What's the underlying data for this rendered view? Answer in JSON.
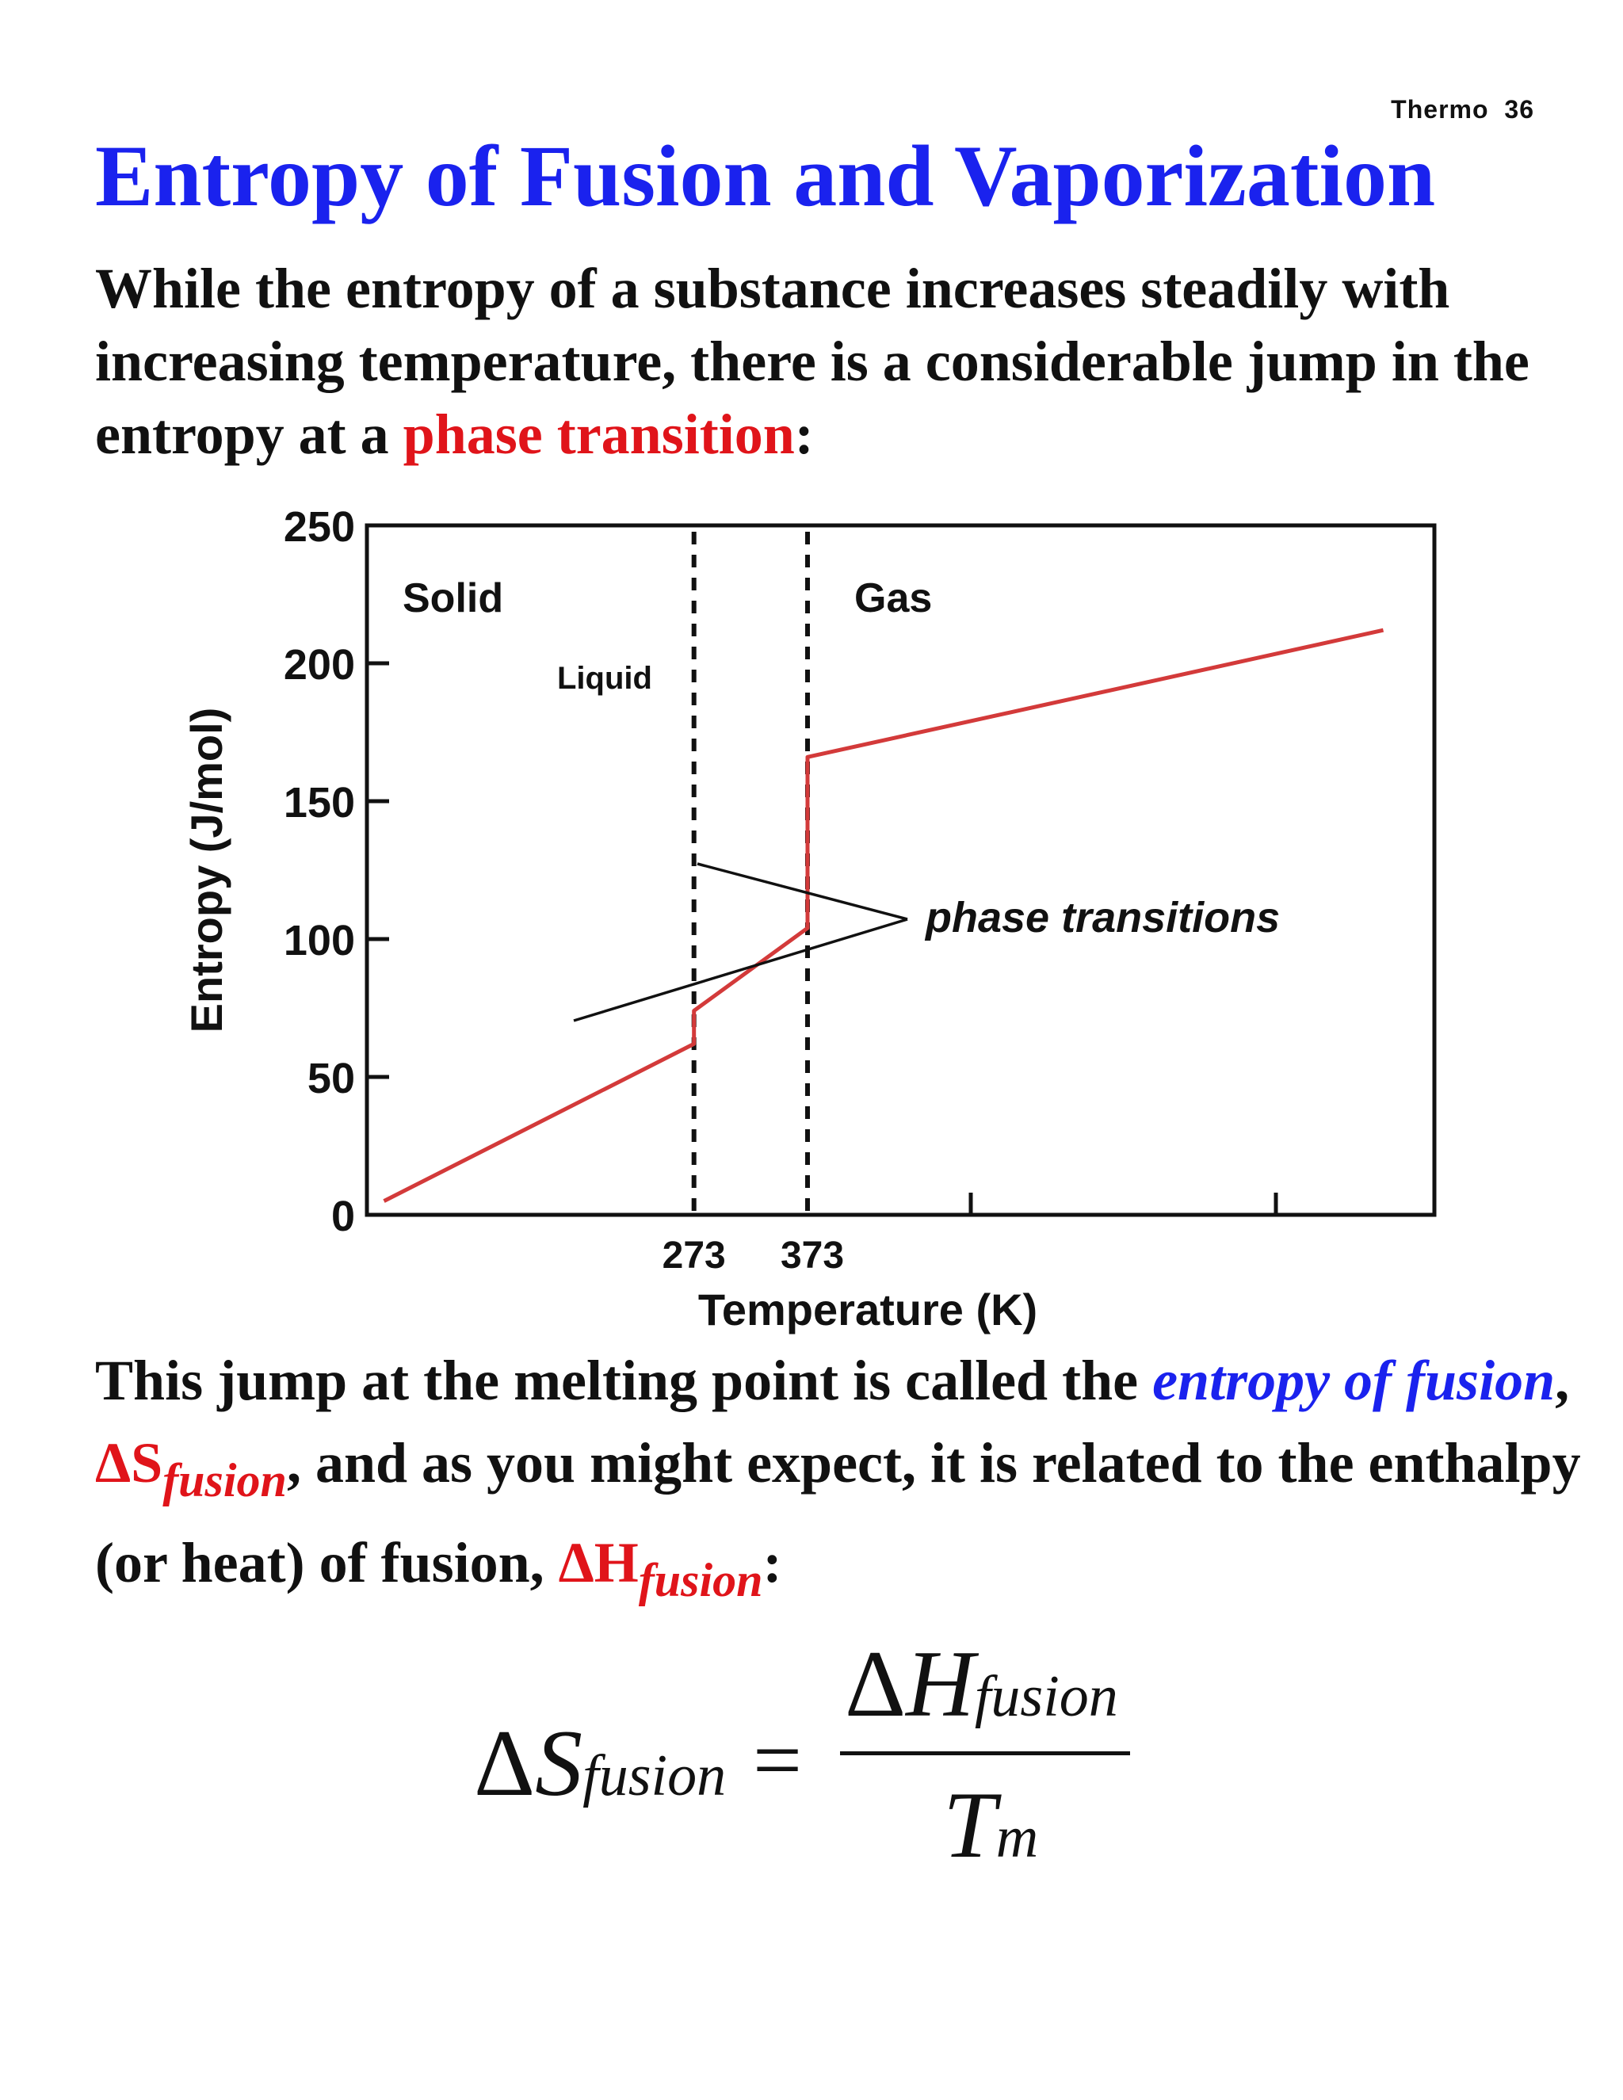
{
  "page_number": "Thermo 36",
  "title": "Entropy of Fusion and Vaporization",
  "intro": {
    "text_before": "While the entropy of a substance increases steadily with increasing temperature, there is a considerable jump in the entropy at a ",
    "highlight": "phase transition",
    "text_after": ":"
  },
  "chart_data": {
    "type": "line",
    "title": "",
    "xlabel": "Temperature (K)",
    "ylabel": "Entropy (J/mol)",
    "ylim": [
      0,
      250
    ],
    "yticks": [
      "0",
      "50",
      "100",
      "150",
      "200",
      "250"
    ],
    "xtick_labels": [
      "273",
      "373"
    ],
    "x_markers": [
      273,
      373
    ],
    "region_labels": [
      "Solid",
      "Liquid",
      "Gas"
    ],
    "annotation": "phase transitions",
    "grid": false,
    "series": [
      {
        "color": "#d33a3a",
        "points": [
          [
            0,
            5
          ],
          [
            273,
            62
          ],
          [
            273,
            74
          ],
          [
            373,
            104
          ],
          [
            373,
            166
          ],
          [
            880,
            212
          ]
        ]
      }
    ]
  },
  "explanation": {
    "p1": "This jump at the melting point is called the ",
    "term": "entropy of fusion",
    "p2": ", ",
    "ds_symbol": "ΔS",
    "ds_sub": "fusion",
    "p3": ", and as you might expect, it is related to the enthalpy (or heat) of fusion, ",
    "dh_symbol": "ΔH",
    "dh_sub": "fusion",
    "p4": ":"
  },
  "formula": {
    "lhs_symbol": "S",
    "lhs_sub": "fusion",
    "equals": "=",
    "num_symbol": "H",
    "num_sub": "fusion",
    "den_symbol": "T",
    "den_sub": "m",
    "delta": "Δ"
  }
}
